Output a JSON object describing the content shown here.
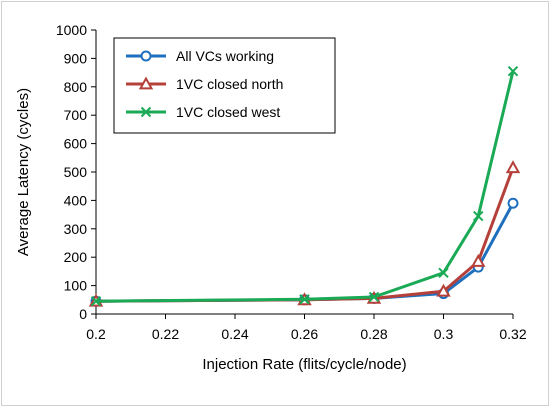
{
  "chart_data": {
    "type": "line",
    "title": "",
    "xlabel": "Injection Rate (flits/cycle/node)",
    "ylabel": "Average Latency (cycles)",
    "xlim": [
      0.2,
      0.32
    ],
    "ylim": [
      0,
      1000
    ],
    "x_ticks": [
      0.2,
      0.22,
      0.24,
      0.26,
      0.28,
      0.3,
      0.32
    ],
    "x_tick_labels": [
      "0.2",
      "0.22",
      "0.24",
      "0.26",
      "0.28",
      "0.3",
      "0.32"
    ],
    "y_ticks": [
      0,
      100,
      200,
      300,
      400,
      500,
      600,
      700,
      800,
      900,
      1000
    ],
    "y_tick_labels": [
      "0",
      "100",
      "200",
      "300",
      "400",
      "500",
      "600",
      "700",
      "800",
      "900",
      "1000"
    ],
    "grid": false,
    "legend_position": "top-left",
    "x": [
      0.2,
      0.26,
      0.28,
      0.3,
      0.31,
      0.32
    ],
    "series": [
      {
        "name": "All VCs working",
        "color": "#1f6fbf",
        "marker": "circle",
        "values": [
          45,
          50,
          55,
          72,
          165,
          390
        ]
      },
      {
        "name": "1VC closed north",
        "color": "#b5403a",
        "marker": "triangle",
        "values": [
          45,
          50,
          55,
          80,
          185,
          515
        ]
      },
      {
        "name": "1VC closed west",
        "color": "#1aaa55",
        "marker": "x",
        "values": [
          45,
          52,
          60,
          145,
          345,
          855
        ]
      }
    ]
  }
}
